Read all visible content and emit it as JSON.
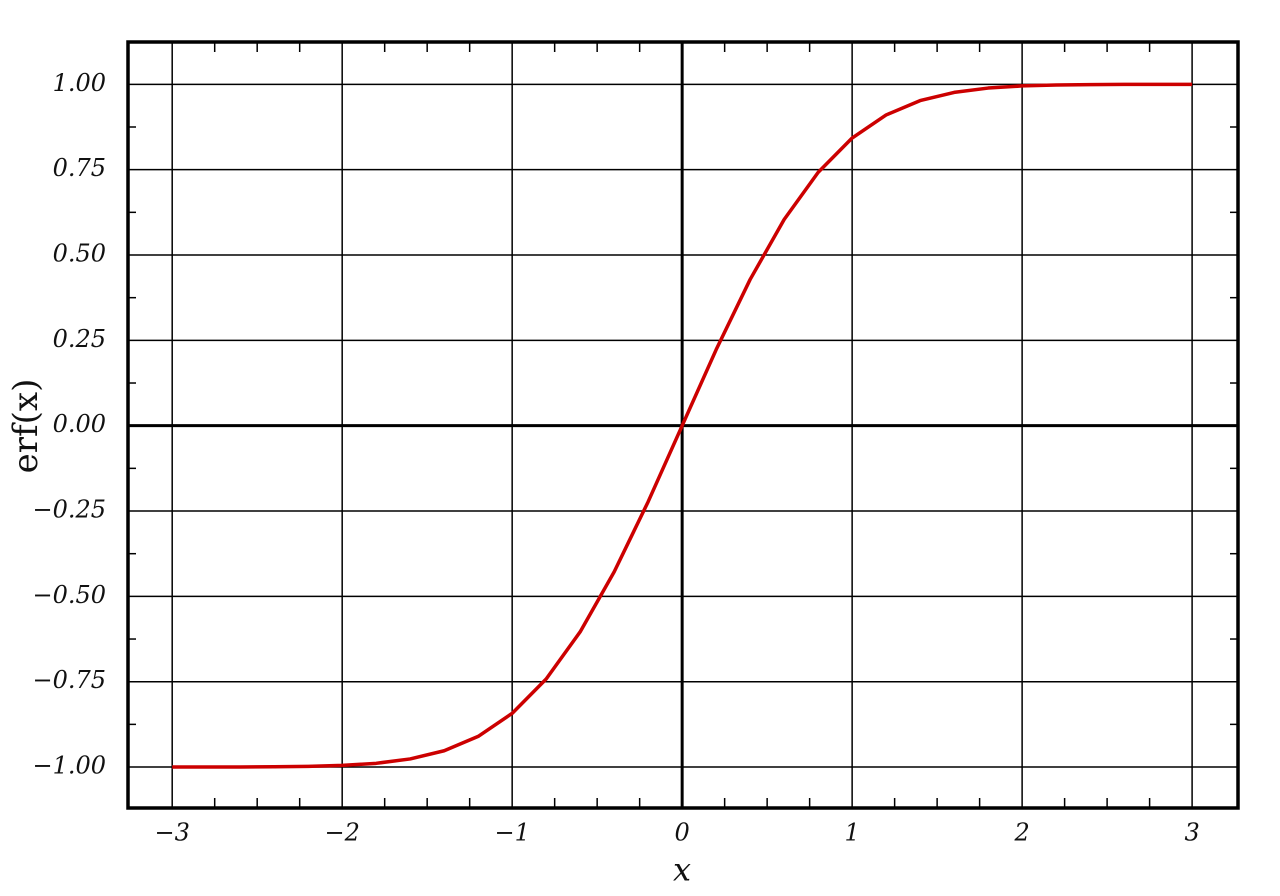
{
  "chart_data": {
    "type": "line",
    "xlabel": "x",
    "ylabel": "erf(x)",
    "x": [
      -3.0,
      -2.8,
      -2.6,
      -2.4,
      -2.2,
      -2.0,
      -1.8,
      -1.6,
      -1.4,
      -1.2,
      -1.0,
      -0.8,
      -0.6,
      -0.4,
      -0.2,
      0.0,
      0.2,
      0.4,
      0.6,
      0.8,
      1.0,
      1.2,
      1.4,
      1.6,
      1.8,
      2.0,
      2.2,
      2.4,
      2.6,
      2.8,
      3.0
    ],
    "series": [
      {
        "color": "#cc0000",
        "values": [
          -1.0,
          -0.9999,
          -0.9998,
          -0.9993,
          -0.9981,
          -0.9953,
          -0.9891,
          -0.9763,
          -0.9523,
          -0.9103,
          -0.8427,
          -0.7421,
          -0.6039,
          -0.4284,
          -0.2227,
          0.0,
          0.2227,
          0.4284,
          0.6039,
          0.7421,
          0.8427,
          0.9103,
          0.9523,
          0.9763,
          0.9891,
          0.9953,
          0.9981,
          0.9993,
          0.9998,
          0.9999,
          1.0
        ]
      }
    ],
    "xlim": [
      -3.26,
      3.27
    ],
    "ylim": [
      -1.12,
      1.124
    ],
    "xticks": [
      {
        "value": -3,
        "label": "−3"
      },
      {
        "value": -2,
        "label": "−2"
      },
      {
        "value": -1,
        "label": "−1"
      },
      0,
      1,
      2,
      3
    ],
    "yticks": [
      {
        "value": -1,
        "label": "−1.00"
      },
      {
        "value": -0.75,
        "label": "−0.75"
      },
      {
        "value": -0.5,
        "label": "−0.50"
      },
      {
        "value": -0.25,
        "label": "−0.25"
      },
      {
        "value": 0,
        "label": "0.00"
      },
      {
        "value": 0.25,
        "label": "0.25"
      },
      {
        "value": 0.5,
        "label": "0.50"
      },
      {
        "value": 0.75,
        "label": "0.75"
      },
      {
        "value": 1,
        "label": "1.00"
      }
    ],
    "xminorticks": [
      -2.75,
      -2.5,
      -2.25,
      -1.75,
      -1.5,
      -1.25,
      -0.75,
      -0.5,
      -0.25,
      0.25,
      0.5,
      0.75,
      1.25,
      1.5,
      1.75,
      2.25,
      2.5,
      2.75
    ],
    "yminorticks": [
      -0.875,
      -0.625,
      -0.375,
      -0.125,
      0.125,
      0.375,
      0.625,
      0.875
    ],
    "grid": true
  }
}
